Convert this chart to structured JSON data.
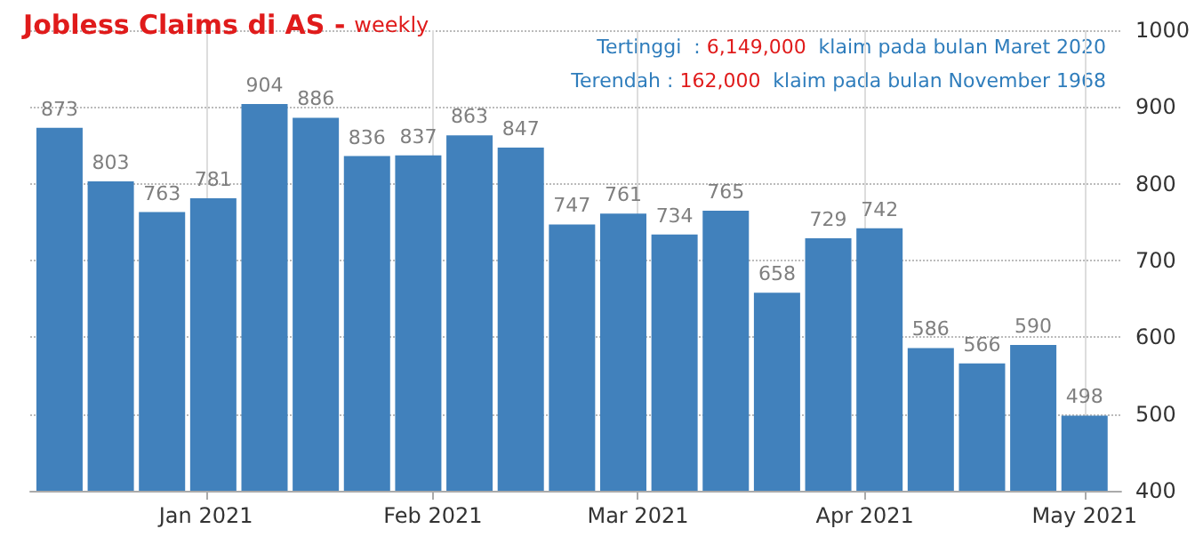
{
  "chart_data": {
    "type": "bar",
    "title": "Jobless Claims di AS -",
    "subtitle": "weekly",
    "annotations": [
      "Tertinggi  : 6,149,000  klaim pada bulan Maret 2020",
      "Terendah : 162,000  klaim pada bulan November 1968"
    ],
    "x": [
      "2020-12-12",
      "2020-12-19",
      "2020-12-26",
      "2021-01-02",
      "2021-01-09",
      "2021-01-16",
      "2021-01-23",
      "2021-01-30",
      "2021-02-06",
      "2021-02-13",
      "2021-02-20",
      "2021-02-27",
      "2021-03-06",
      "2021-03-13",
      "2021-03-20",
      "2021-03-27",
      "2021-04-03",
      "2021-04-10",
      "2021-04-17",
      "2021-04-24",
      "2021-05-01"
    ],
    "values": [
      873,
      803,
      763,
      781,
      904,
      886,
      836,
      837,
      863,
      847,
      747,
      761,
      734,
      765,
      658,
      729,
      742,
      586,
      566,
      590,
      498
    ],
    "color": "#4181bc",
    "data_labels": true,
    "xlim": [
      "2020-12-08",
      "2021-05-06"
    ],
    "xticks": [
      {
        "value": "2021-01-01",
        "label": "Jan 2021"
      },
      {
        "value": "2021-02-01",
        "label": "Feb 2021"
      },
      {
        "value": "2021-03-01",
        "label": "Mar 2021"
      },
      {
        "value": "2021-04-01",
        "label": "Apr 2021"
      },
      {
        "value": "2021-05-01",
        "label": "May 2021"
      }
    ],
    "ylim": [
      400,
      1000
    ],
    "yticks": [
      400,
      500,
      600,
      700,
      800,
      900,
      1000
    ],
    "grid": true
  }
}
